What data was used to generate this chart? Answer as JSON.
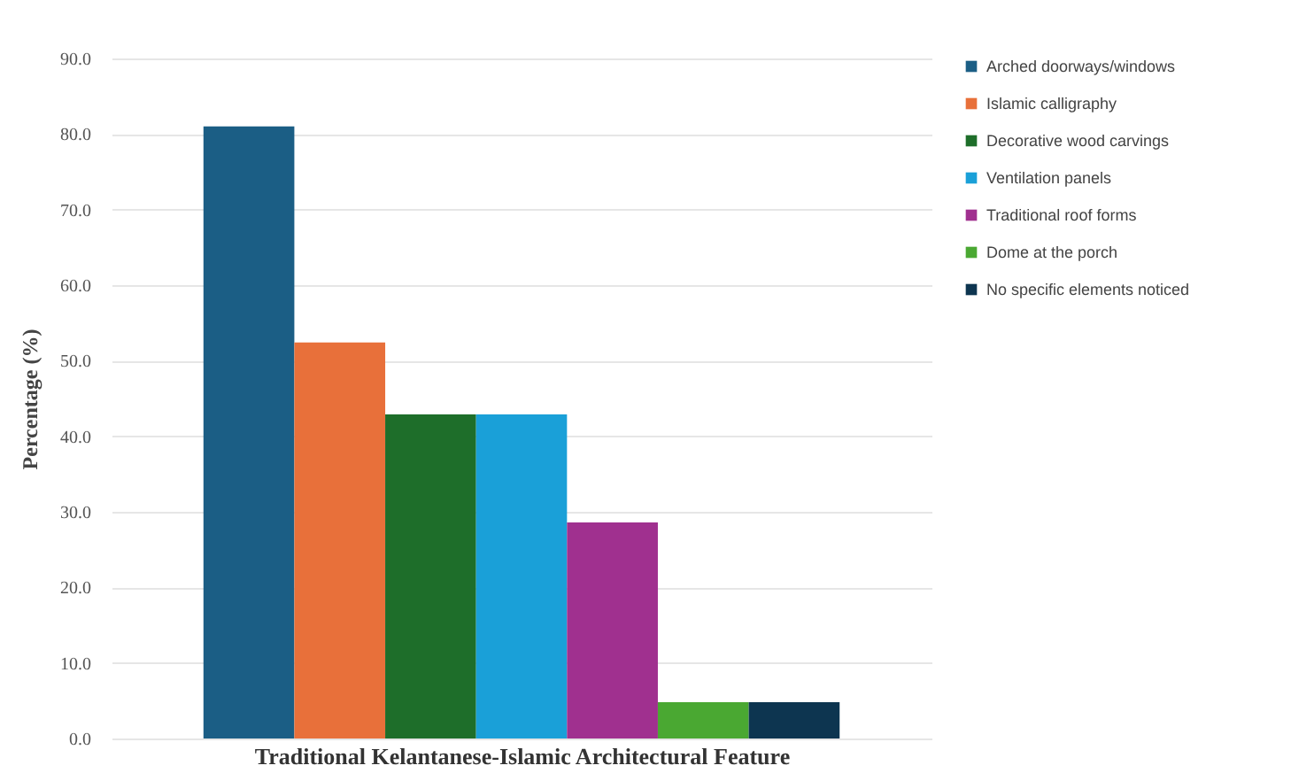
{
  "chart_data": {
    "type": "bar",
    "xlabel": "Traditional Kelantanese-Islamic Architectural Feature",
    "ylabel": "Percentage (%)",
    "categories": [
      null
    ],
    "series": [
      {
        "name": "Arched doorways/windows",
        "color": "#1b5e85",
        "values": [
          81.0
        ]
      },
      {
        "name": "Islamic calligraphy",
        "color": "#e8703a",
        "values": [
          52.4
        ]
      },
      {
        "name": "Decorative wood carvings",
        "color": "#1e6e2a",
        "values": [
          42.9
        ]
      },
      {
        "name": "Ventilation panels",
        "color": "#1aa0d8",
        "values": [
          42.9
        ]
      },
      {
        "name": "Traditional roof forms",
        "color": "#a0308f",
        "values": [
          28.6
        ]
      },
      {
        "name": "Dome at the porch",
        "color": "#4aa832",
        "values": [
          4.8
        ]
      },
      {
        "name": "No specific elements noticed",
        "color": "#0d3550",
        "values": [
          4.8
        ]
      }
    ],
    "ylim": [
      0,
      90
    ],
    "yticks": [
      {
        "value": 0,
        "label": "0.0"
      },
      {
        "value": 10,
        "label": "10.0"
      },
      {
        "value": 20,
        "label": "20.0"
      },
      {
        "value": 30,
        "label": "30.0"
      },
      {
        "value": 40,
        "label": "40.0"
      },
      {
        "value": 50,
        "label": "50.0"
      },
      {
        "value": 60,
        "label": "60.0"
      },
      {
        "value": 70,
        "label": "70.0"
      },
      {
        "value": 80,
        "label": "80.0"
      },
      {
        "value": 90,
        "label": "90.0"
      }
    ],
    "grid": "y",
    "legend": "right",
    "tick_labels": "y"
  }
}
